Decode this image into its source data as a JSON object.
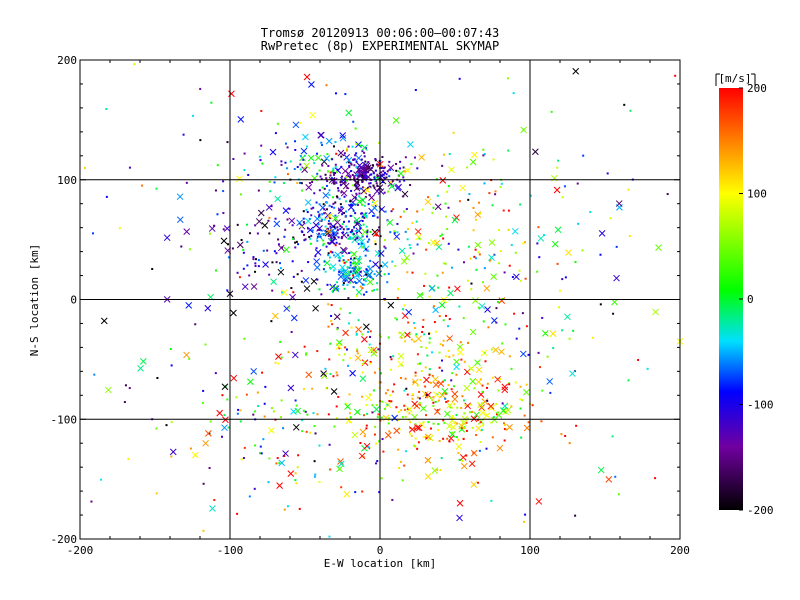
{
  "chart_data": {
    "type": "scatter",
    "title": "Tromsø 20120913 00:06:00–00:07:43",
    "subtitle": "RwPretec (8p) EXPERIMENTAL SKYMAP",
    "xlabel": "E-W location [km]",
    "ylabel": "N-S location [km]",
    "xlim": [
      -200,
      200
    ],
    "ylim": [
      -200,
      200
    ],
    "x_ticks": [
      "-200",
      "-100",
      "0",
      "100",
      "200"
    ],
    "y_ticks": [
      "-200",
      "-100",
      "0",
      "100",
      "200"
    ],
    "grid_x": [
      -100,
      0,
      100
    ],
    "grid_y": [
      -100,
      0,
      100
    ],
    "colorbar": {
      "label": "[m/s]",
      "range": [
        -200,
        200
      ],
      "ticks": [
        "200",
        "100",
        "0",
        "-100",
        "-200"
      ],
      "colormap": [
        "#000000",
        "#7000a0",
        "#0000ff",
        "#00e0ff",
        "#00ff00",
        "#ffff00",
        "#ff0000"
      ]
    },
    "clusters": [
      {
        "x": -12,
        "y": 103,
        "sx": 13,
        "sy": 9,
        "n": 200,
        "v": -140,
        "vs": 30
      },
      {
        "x": -25,
        "y": 62,
        "sx": 15,
        "sy": 14,
        "n": 200,
        "v": -90,
        "vs": 45
      },
      {
        "x": -18,
        "y": 22,
        "sx": 10,
        "sy": 8,
        "n": 110,
        "v": -45,
        "vs": 30
      },
      {
        "x": -48,
        "y": 115,
        "sx": 20,
        "sy": 14,
        "n": 80,
        "v": -55,
        "vs": 50
      },
      {
        "x": -65,
        "y": 50,
        "sx": 30,
        "sy": 30,
        "n": 140,
        "v": -140,
        "vs": 55
      },
      {
        "x": 45,
        "y": -100,
        "sx": 30,
        "sy": 20,
        "n": 230,
        "v": 130,
        "vs": 60
      },
      {
        "x": 25,
        "y": -55,
        "sx": 35,
        "sy": 35,
        "n": 180,
        "v": 115,
        "vs": 80
      },
      {
        "x": 40,
        "y": 70,
        "sx": 45,
        "sy": 40,
        "n": 130,
        "v": 70,
        "vs": 90
      },
      {
        "x": -70,
        "y": -110,
        "sx": 40,
        "sy": 35,
        "n": 120,
        "v": 30,
        "vs": 130
      },
      {
        "x": 10,
        "y": 5,
        "sx": 70,
        "sy": 60,
        "n": 190,
        "v": 10,
        "vs": 120
      },
      {
        "x": 0,
        "y": 0,
        "sx": 140,
        "sy": 140,
        "n": 300,
        "v": 0,
        "vs": 130
      }
    ],
    "marker_types": [
      "dot",
      "cross"
    ]
  }
}
